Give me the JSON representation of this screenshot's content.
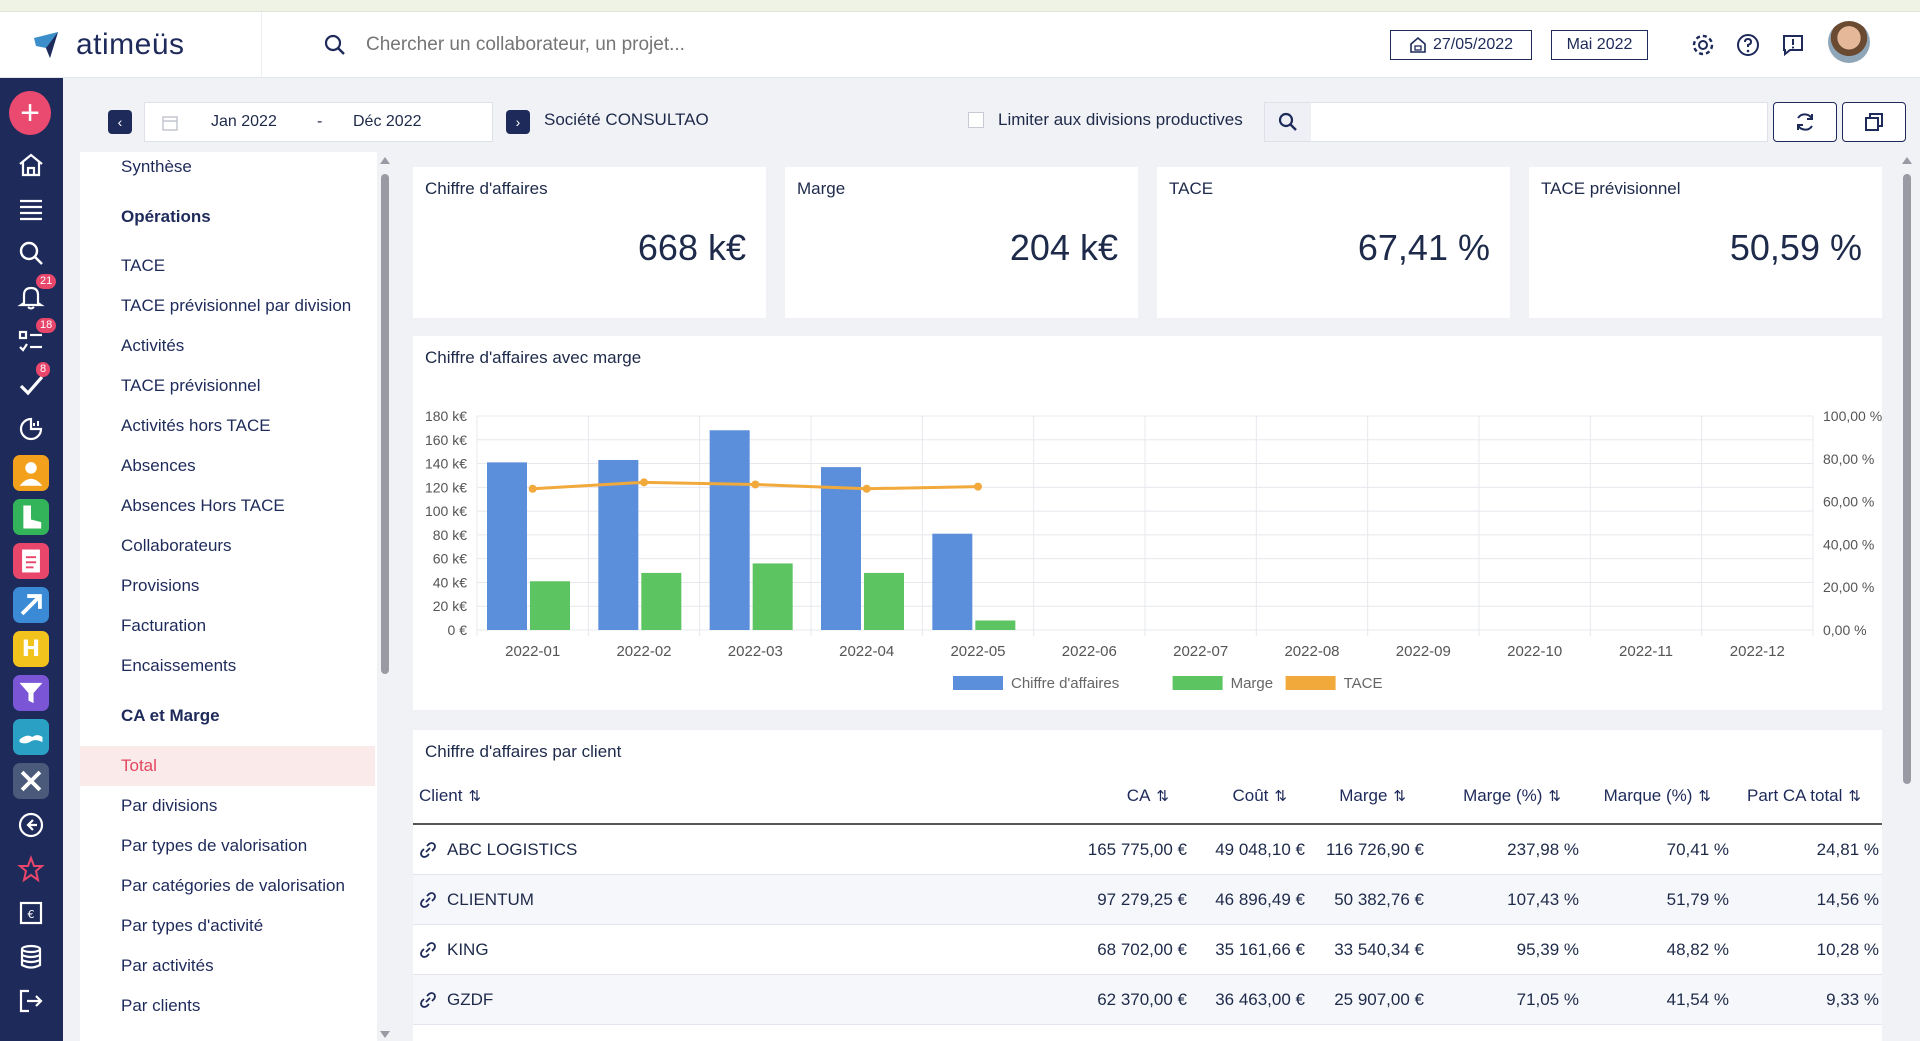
{
  "app": {
    "name": "atimeüs"
  },
  "header": {
    "search_placeholder": "Chercher un collaborateur, un projet...",
    "date": "27/05/2022",
    "period": "Mai 2022"
  },
  "rail": {
    "notifications_badge": "21",
    "tasks_badge": "18",
    "validations_badge": "8"
  },
  "toolbar": {
    "period_start": "Jan 2022",
    "period_sep": "-",
    "period_end": "Déc 2022",
    "company": "Société CONSULTAO",
    "limit_label": "Limiter aux divisions productives"
  },
  "sidebar": {
    "items": [
      {
        "label": "Synthèse",
        "type": "item"
      },
      {
        "label": "Opérations",
        "type": "head"
      },
      {
        "label": "TACE",
        "type": "item"
      },
      {
        "label": "TACE prévisionnel par division",
        "type": "item"
      },
      {
        "label": "Activités",
        "type": "item"
      },
      {
        "label": "TACE prévisionnel",
        "type": "item"
      },
      {
        "label": "Activités hors TACE",
        "type": "item"
      },
      {
        "label": "Absences",
        "type": "item"
      },
      {
        "label": "Absences Hors TACE",
        "type": "item"
      },
      {
        "label": "Collaborateurs",
        "type": "item"
      },
      {
        "label": "Provisions",
        "type": "item"
      },
      {
        "label": "Facturation",
        "type": "item"
      },
      {
        "label": "Encaissements",
        "type": "item"
      },
      {
        "label": "CA et Marge",
        "type": "head"
      },
      {
        "label": "Total",
        "type": "active"
      },
      {
        "label": "Par divisions",
        "type": "item"
      },
      {
        "label": "Par types de valorisation",
        "type": "item"
      },
      {
        "label": "Par catégories de valorisation",
        "type": "item"
      },
      {
        "label": "Par types d'activité",
        "type": "item"
      },
      {
        "label": "Par activités",
        "type": "item"
      },
      {
        "label": "Par clients",
        "type": "item"
      }
    ]
  },
  "kpis": [
    {
      "label": "Chiffre d'affaires",
      "value": "668 k€"
    },
    {
      "label": "Marge",
      "value": "204 k€"
    },
    {
      "label": "TACE",
      "value": "67,41 %"
    },
    {
      "label": "TACE prévisionnel",
      "value": "50,59 %"
    }
  ],
  "chart_card": {
    "title": "Chiffre d'affaires avec marge"
  },
  "chart_data": {
    "type": "bar",
    "categories": [
      "2022-01",
      "2022-02",
      "2022-03",
      "2022-04",
      "2022-05",
      "2022-06",
      "2022-07",
      "2022-08",
      "2022-09",
      "2022-10",
      "2022-11",
      "2022-12"
    ],
    "series": [
      {
        "name": "Chiffre d'affaires",
        "type": "bar",
        "axis": "left",
        "color": "#5b8fdc",
        "values": [
          141,
          143,
          168,
          137,
          81,
          null,
          null,
          null,
          null,
          null,
          null,
          null
        ]
      },
      {
        "name": "Marge",
        "type": "bar",
        "axis": "left",
        "color": "#5cc460",
        "values": [
          41,
          48,
          56,
          48,
          8,
          null,
          null,
          null,
          null,
          null,
          null,
          null
        ]
      },
      {
        "name": "TACE",
        "type": "line",
        "axis": "right",
        "color": "#f2a93b",
        "values": [
          66,
          69,
          68,
          66,
          67,
          null,
          null,
          null,
          null,
          null,
          null,
          null
        ]
      }
    ],
    "left_axis": {
      "min": 0,
      "max": 180,
      "ticks": [
        "0 €",
        "20 k€",
        "40 k€",
        "60 k€",
        "80 k€",
        "100 k€",
        "120 k€",
        "140 k€",
        "160 k€",
        "180 k€"
      ]
    },
    "right_axis": {
      "min": 0,
      "max": 100,
      "ticks": [
        "0,00 %",
        "20,00 %",
        "40,00 %",
        "60,00 %",
        "80,00 %",
        "100,00 %"
      ]
    },
    "legend": "bottom",
    "grid": true
  },
  "table": {
    "title": "Chiffre d'affaires par client",
    "columns": [
      "Client",
      "CA",
      "Coût",
      "Marge",
      "Marge (%)",
      "Marque (%)",
      "Part CA total"
    ],
    "sort_icon": "⇅",
    "rows": [
      [
        "ABC LOGISTICS",
        "165 775,00 €",
        "49 048,10 €",
        "116 726,90 €",
        "237,98 %",
        "70,41 %",
        "24,81 %"
      ],
      [
        "CLIENTUM",
        "97 279,25 €",
        "46 896,49 €",
        "50 382,76 €",
        "107,43 %",
        "51,79 %",
        "14,56 %"
      ],
      [
        "KING",
        "68 702,00 €",
        "35 161,66 €",
        "33 540,34 €",
        "95,39 %",
        "48,82 %",
        "10,28 %"
      ],
      [
        "GZDF",
        "62 370,00 €",
        "36 463,00 €",
        "25 907,00 €",
        "71,05 %",
        "41,54 %",
        "9,33 %"
      ]
    ]
  }
}
